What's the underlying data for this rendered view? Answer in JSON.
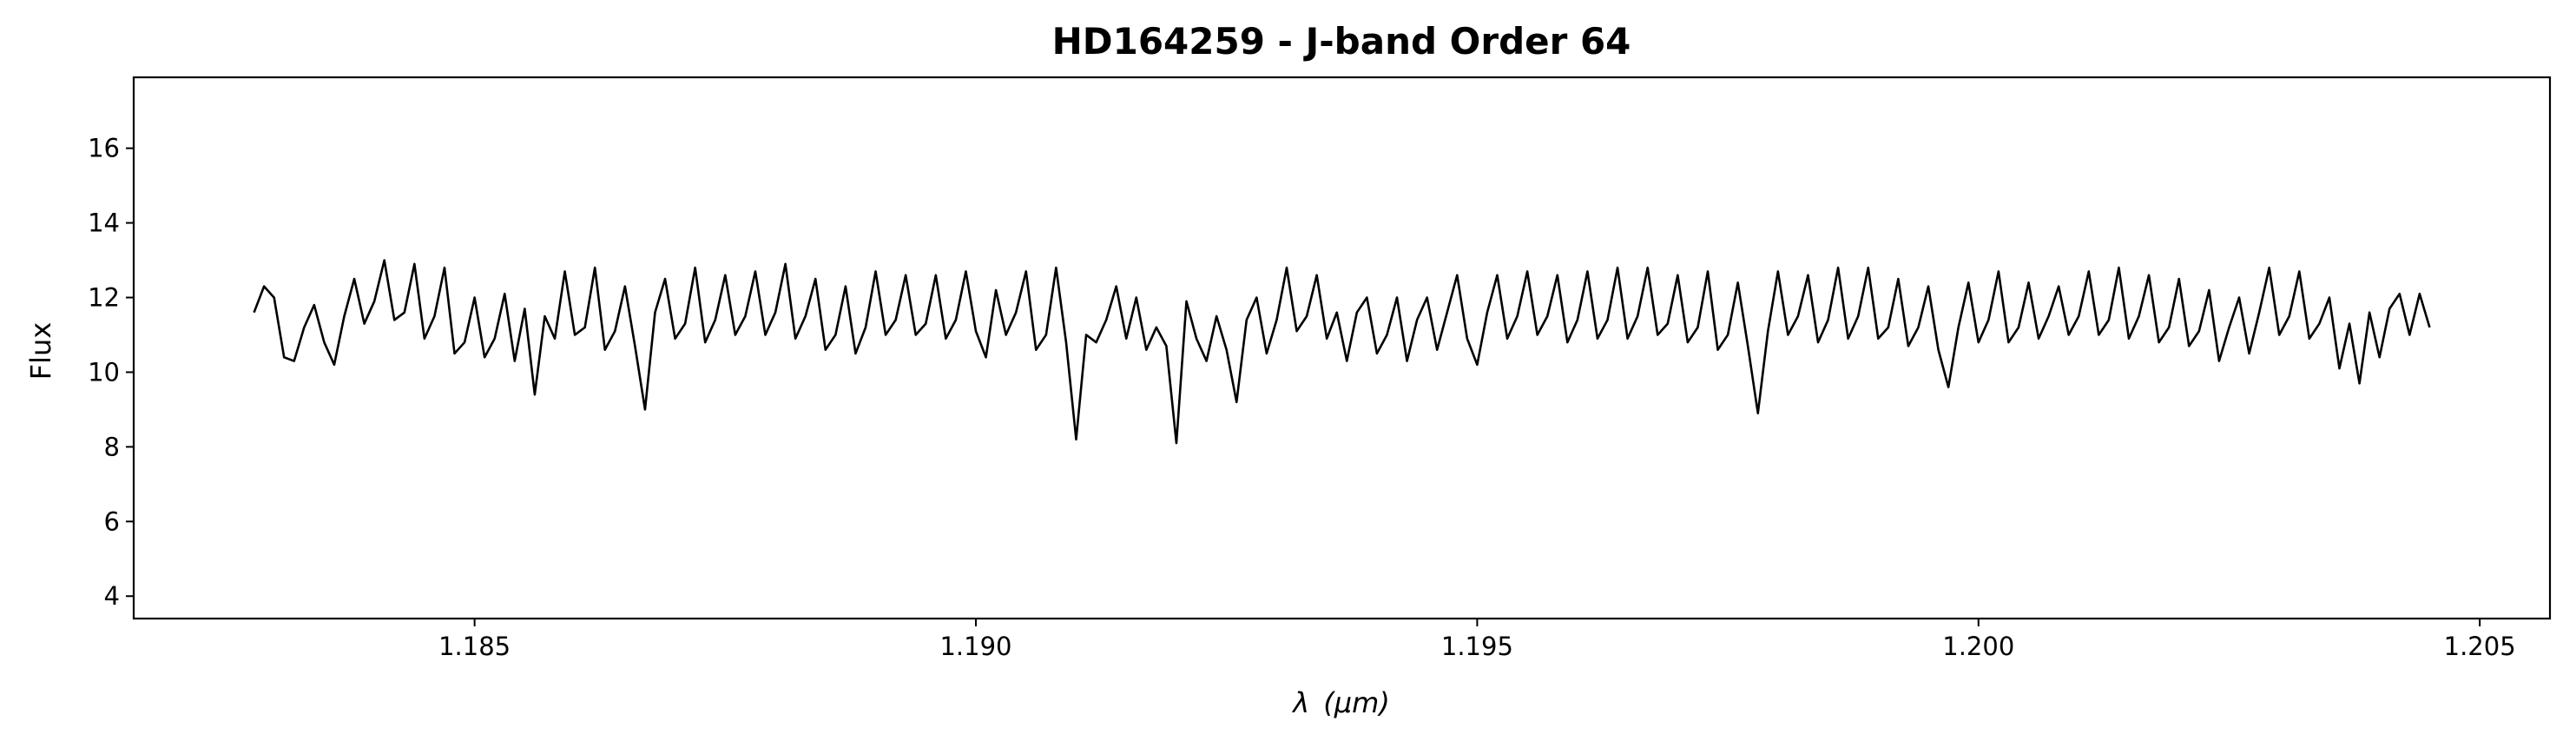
{
  "chart_data": {
    "type": "line",
    "title": "HD164259 - J-band Order 64",
    "xlabel_symbol": "λ",
    "xlabel_unit": "(μm)",
    "ylabel": "Flux",
    "xlim": [
      1.1816,
      1.2057
    ],
    "ylim": [
      3.4,
      17.9
    ],
    "xticks": [
      1.185,
      1.19,
      1.195,
      1.2,
      1.205
    ],
    "xtick_labels": [
      "1.185",
      "1.190",
      "1.195",
      "1.200",
      "1.205"
    ],
    "yticks": [
      4,
      6,
      8,
      10,
      12,
      14,
      16
    ],
    "ytick_labels": [
      "4",
      "6",
      "8",
      "10",
      "12",
      "14",
      "16"
    ],
    "grid": false,
    "line_color": "#000000",
    "series": [
      {
        "x_start": 1.1828,
        "x_end": 1.2045,
        "points": [
          [
            1.1828,
            11.6
          ],
          [
            1.1829,
            12.3
          ],
          [
            1.183,
            12.0
          ],
          [
            1.1831,
            10.4
          ],
          [
            1.1832,
            10.3
          ],
          [
            1.1833,
            11.2
          ],
          [
            1.1834,
            11.8
          ],
          [
            1.1835,
            10.8
          ],
          [
            1.1836,
            10.2
          ],
          [
            1.1837,
            11.5
          ],
          [
            1.1838,
            12.5
          ],
          [
            1.1839,
            11.3
          ],
          [
            1.184,
            11.9
          ],
          [
            1.1841,
            13.0
          ],
          [
            1.1842,
            11.4
          ],
          [
            1.1843,
            11.6
          ],
          [
            1.1844,
            12.9
          ],
          [
            1.1845,
            10.9
          ],
          [
            1.1846,
            11.5
          ],
          [
            1.1847,
            12.8
          ],
          [
            1.1848,
            10.5
          ],
          [
            1.1849,
            10.8
          ],
          [
            1.185,
            12.0
          ],
          [
            1.1851,
            10.4
          ],
          [
            1.1852,
            10.9
          ],
          [
            1.1853,
            12.1
          ],
          [
            1.1854,
            10.3
          ],
          [
            1.1855,
            11.7
          ],
          [
            1.1856,
            9.4
          ],
          [
            1.1857,
            11.5
          ],
          [
            1.1858,
            10.9
          ],
          [
            1.1859,
            12.7
          ],
          [
            1.186,
            11.0
          ],
          [
            1.1861,
            11.2
          ],
          [
            1.1862,
            12.8
          ],
          [
            1.1863,
            10.6
          ],
          [
            1.1864,
            11.1
          ],
          [
            1.1865,
            12.3
          ],
          [
            1.1866,
            10.7
          ],
          [
            1.1867,
            9.0
          ],
          [
            1.1868,
            11.6
          ],
          [
            1.1869,
            12.5
          ],
          [
            1.187,
            10.9
          ],
          [
            1.1871,
            11.3
          ],
          [
            1.1872,
            12.8
          ],
          [
            1.1873,
            10.8
          ],
          [
            1.1874,
            11.4
          ],
          [
            1.1875,
            12.6
          ],
          [
            1.1876,
            11.0
          ],
          [
            1.1877,
            11.5
          ],
          [
            1.1878,
            12.7
          ],
          [
            1.1879,
            11.0
          ],
          [
            1.188,
            11.6
          ],
          [
            1.1881,
            12.9
          ],
          [
            1.1882,
            10.9
          ],
          [
            1.1883,
            11.5
          ],
          [
            1.1884,
            12.5
          ],
          [
            1.1885,
            10.6
          ],
          [
            1.1886,
            11.0
          ],
          [
            1.1887,
            12.3
          ],
          [
            1.1888,
            10.5
          ],
          [
            1.1889,
            11.2
          ],
          [
            1.189,
            12.7
          ],
          [
            1.1891,
            11.0
          ],
          [
            1.1892,
            11.4
          ],
          [
            1.1893,
            12.6
          ],
          [
            1.1894,
            11.0
          ],
          [
            1.1895,
            11.3
          ],
          [
            1.1896,
            12.6
          ],
          [
            1.1897,
            10.9
          ],
          [
            1.1898,
            11.4
          ],
          [
            1.1899,
            12.7
          ],
          [
            1.19,
            11.1
          ],
          [
            1.1901,
            10.4
          ],
          [
            1.1902,
            12.2
          ],
          [
            1.1903,
            11.0
          ],
          [
            1.1904,
            11.6
          ],
          [
            1.1905,
            12.7
          ],
          [
            1.1906,
            10.6
          ],
          [
            1.1907,
            11.0
          ],
          [
            1.1908,
            12.8
          ],
          [
            1.1909,
            10.8
          ],
          [
            1.191,
            8.2
          ],
          [
            1.1911,
            11.0
          ],
          [
            1.1912,
            10.8
          ],
          [
            1.1913,
            11.4
          ],
          [
            1.1914,
            12.3
          ],
          [
            1.1915,
            10.9
          ],
          [
            1.1916,
            12.0
          ],
          [
            1.1917,
            10.6
          ],
          [
            1.1918,
            11.2
          ],
          [
            1.1919,
            10.7
          ],
          [
            1.192,
            8.1
          ],
          [
            1.1921,
            11.9
          ],
          [
            1.1922,
            10.9
          ],
          [
            1.1923,
            10.3
          ],
          [
            1.1924,
            11.5
          ],
          [
            1.1925,
            10.6
          ],
          [
            1.1926,
            9.2
          ],
          [
            1.1927,
            11.4
          ],
          [
            1.1928,
            12.0
          ],
          [
            1.1929,
            10.5
          ],
          [
            1.193,
            11.4
          ],
          [
            1.1931,
            12.8
          ],
          [
            1.1932,
            11.1
          ],
          [
            1.1933,
            11.5
          ],
          [
            1.1934,
            12.6
          ],
          [
            1.1935,
            10.9
          ],
          [
            1.1936,
            11.6
          ],
          [
            1.1937,
            10.3
          ],
          [
            1.1938,
            11.6
          ],
          [
            1.1939,
            12.0
          ],
          [
            1.194,
            10.5
          ],
          [
            1.1941,
            11.0
          ],
          [
            1.1942,
            12.0
          ],
          [
            1.1943,
            10.3
          ],
          [
            1.1944,
            11.4
          ],
          [
            1.1945,
            12.0
          ],
          [
            1.1946,
            10.6
          ],
          [
            1.1947,
            11.6
          ],
          [
            1.1948,
            12.6
          ],
          [
            1.1949,
            10.9
          ],
          [
            1.195,
            10.2
          ],
          [
            1.1951,
            11.6
          ],
          [
            1.1952,
            12.6
          ],
          [
            1.1953,
            10.9
          ],
          [
            1.1954,
            11.5
          ],
          [
            1.1955,
            12.7
          ],
          [
            1.1956,
            11.0
          ],
          [
            1.1957,
            11.5
          ],
          [
            1.1958,
            12.6
          ],
          [
            1.1959,
            10.8
          ],
          [
            1.196,
            11.4
          ],
          [
            1.1961,
            12.7
          ],
          [
            1.1962,
            10.9
          ],
          [
            1.1963,
            11.4
          ],
          [
            1.1964,
            12.8
          ],
          [
            1.1965,
            10.9
          ],
          [
            1.1966,
            11.5
          ],
          [
            1.1967,
            12.8
          ],
          [
            1.1968,
            11.0
          ],
          [
            1.1969,
            11.3
          ],
          [
            1.197,
            12.6
          ],
          [
            1.1971,
            10.8
          ],
          [
            1.1972,
            11.2
          ],
          [
            1.1973,
            12.7
          ],
          [
            1.1974,
            10.6
          ],
          [
            1.1975,
            11.0
          ],
          [
            1.1976,
            12.4
          ],
          [
            1.1977,
            10.7
          ],
          [
            1.1978,
            8.9
          ],
          [
            1.1979,
            11.1
          ],
          [
            1.198,
            12.7
          ],
          [
            1.1981,
            11.0
          ],
          [
            1.1982,
            11.5
          ],
          [
            1.1983,
            12.6
          ],
          [
            1.1984,
            10.8
          ],
          [
            1.1985,
            11.4
          ],
          [
            1.1986,
            12.8
          ],
          [
            1.1987,
            10.9
          ],
          [
            1.1988,
            11.5
          ],
          [
            1.1989,
            12.8
          ],
          [
            1.199,
            10.9
          ],
          [
            1.1991,
            11.2
          ],
          [
            1.1992,
            12.5
          ],
          [
            1.1993,
            10.7
          ],
          [
            1.1994,
            11.2
          ],
          [
            1.1995,
            12.3
          ],
          [
            1.1996,
            10.6
          ],
          [
            1.1997,
            9.6
          ],
          [
            1.1998,
            11.2
          ],
          [
            1.1999,
            12.4
          ],
          [
            1.2,
            10.8
          ],
          [
            1.2001,
            11.4
          ],
          [
            1.2002,
            12.7
          ],
          [
            1.2003,
            10.8
          ],
          [
            1.2004,
            11.2
          ],
          [
            1.2005,
            12.4
          ],
          [
            1.2006,
            10.9
          ],
          [
            1.2007,
            11.5
          ],
          [
            1.2008,
            12.3
          ],
          [
            1.2009,
            11.0
          ],
          [
            1.201,
            11.5
          ],
          [
            1.2011,
            12.7
          ],
          [
            1.2012,
            11.0
          ],
          [
            1.2013,
            11.4
          ],
          [
            1.2014,
            12.8
          ],
          [
            1.2015,
            10.9
          ],
          [
            1.2016,
            11.5
          ],
          [
            1.2017,
            12.6
          ],
          [
            1.2018,
            10.8
          ],
          [
            1.2019,
            11.2
          ],
          [
            1.202,
            12.5
          ],
          [
            1.2021,
            10.7
          ],
          [
            1.2022,
            11.1
          ],
          [
            1.2023,
            12.2
          ],
          [
            1.2024,
            10.3
          ],
          [
            1.2025,
            11.2
          ],
          [
            1.2026,
            12.0
          ],
          [
            1.2027,
            10.5
          ],
          [
            1.2028,
            11.6
          ],
          [
            1.2029,
            12.8
          ],
          [
            1.203,
            11.0
          ],
          [
            1.2031,
            11.5
          ],
          [
            1.2032,
            12.7
          ],
          [
            1.2033,
            10.9
          ],
          [
            1.2034,
            11.3
          ],
          [
            1.2035,
            12.0
          ],
          [
            1.2036,
            10.1
          ],
          [
            1.2037,
            11.3
          ],
          [
            1.2038,
            9.7
          ],
          [
            1.2039,
            11.6
          ],
          [
            1.204,
            10.4
          ],
          [
            1.2041,
            11.7
          ],
          [
            1.2042,
            12.1
          ],
          [
            1.2043,
            11.0
          ],
          [
            1.2044,
            12.1
          ],
          [
            1.2045,
            11.2
          ]
        ]
      }
    ]
  }
}
